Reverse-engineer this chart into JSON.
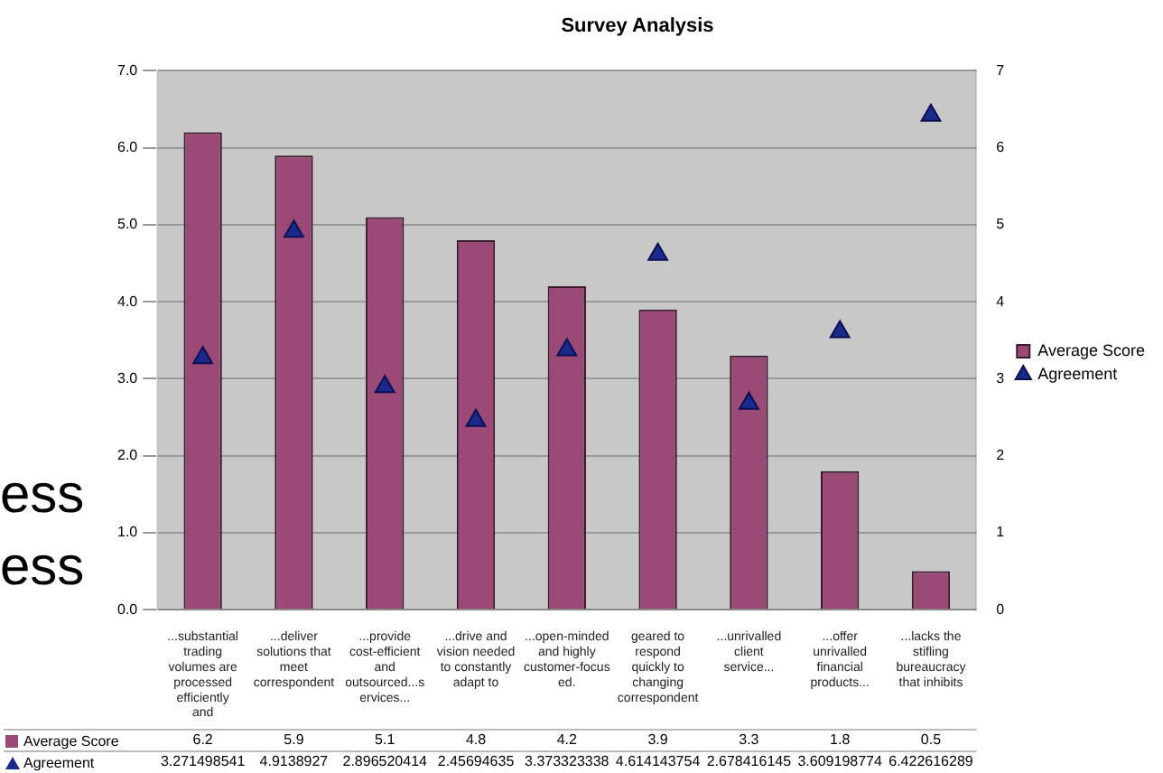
{
  "chart_data": {
    "type": "bar",
    "title": "Survey Analysis",
    "categories": [
      "...substantial trading volumes are processed efficiently and",
      "...deliver solutions that meet correspondent",
      "...provide cost-efficient and outsourced...services...",
      "...drive and vision needed to constantly adapt to",
      "...open-minded and highly customer-focused.",
      "geared to respond quickly to changing correspondent",
      "...unrivalled client service...",
      "...offer unrivalled financial products...",
      "...lacks the stifling bureaucracy that inhibits"
    ],
    "series": [
      {
        "name": "Average Score",
        "color": "#9b4a78",
        "values": [
          6.2,
          5.9,
          5.1,
          4.8,
          4.2,
          3.9,
          3.3,
          1.8,
          0.5
        ]
      },
      {
        "name": "Agreement",
        "type": "scatter",
        "axis": "y2",
        "marker": "triangle",
        "color": "#1a2a8c",
        "values": [
          3.271498541,
          4.9138927,
          2.896520414,
          2.45694635,
          3.373323338,
          4.614143754,
          2.678416145,
          3.609198774,
          6.422616289
        ]
      }
    ],
    "ylim": [
      0,
      7
    ],
    "yticks": [
      {
        "value": 0,
        "label": "0.0"
      },
      {
        "value": 1,
        "label": "1.0"
      },
      {
        "value": 2,
        "label": "2.0"
      },
      {
        "value": 3,
        "label": "3.0"
      },
      {
        "value": 4,
        "label": "4.0"
      },
      {
        "value": 5,
        "label": "5.0"
      },
      {
        "value": 6,
        "label": "6.0"
      },
      {
        "value": 7,
        "label": "7.0"
      }
    ],
    "y2lim": [
      0,
      7
    ],
    "y2ticks": [
      0,
      1,
      2,
      3,
      4,
      5,
      6,
      7
    ],
    "grid": "y",
    "legend": "right",
    "data_labels": true,
    "annotations": [
      "ess",
      "ess"
    ]
  }
}
